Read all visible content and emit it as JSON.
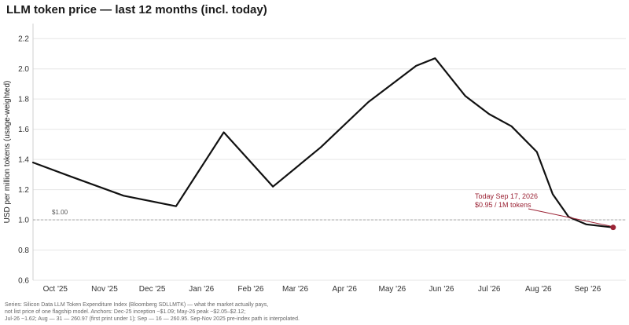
{
  "chart_data": {
    "type": "line",
    "title": "LLM token price — last 12 months  (incl. today)",
    "ylabel": "USD per million tokens  (usage-weighted)",
    "xlabel": "",
    "ylim": [
      0.6,
      2.3
    ],
    "yticks": [
      0.6,
      0.8,
      1.0,
      1.2,
      1.4,
      1.6,
      1.8,
      2.0,
      2.2
    ],
    "xlim": [
      "2025-09-17",
      "2026-09-25"
    ],
    "xticks": [
      {
        "date": "2025-10-01",
        "label": "Oct '25"
      },
      {
        "date": "2025-11-01",
        "label": "Nov '25"
      },
      {
        "date": "2025-12-01",
        "label": "Dec '25"
      },
      {
        "date": "2026-01-01",
        "label": "Jan '26"
      },
      {
        "date": "2026-02-01",
        "label": "Feb '26"
      },
      {
        "date": "2026-03-01",
        "label": "Mar '26"
      },
      {
        "date": "2026-04-01",
        "label": "Apr '26"
      },
      {
        "date": "2026-05-01",
        "label": "May '26"
      },
      {
        "date": "2026-06-01",
        "label": "Jun '26"
      },
      {
        "date": "2026-07-01",
        "label": "Jul '26"
      },
      {
        "date": "2026-08-01",
        "label": "Aug '26"
      },
      {
        "date": "2026-09-01",
        "label": "Sep '26"
      }
    ],
    "grid": "horizontal",
    "reference_line": {
      "y": 1.0,
      "label": "$1.00"
    },
    "series": [
      {
        "color": "#111111",
        "points": [
          {
            "x": "2025-09-17",
            "y": 1.38
          },
          {
            "x": "2025-10-10",
            "y": 1.29
          },
          {
            "x": "2025-11-13",
            "y": 1.16
          },
          {
            "x": "2025-12-16",
            "y": 1.09
          },
          {
            "x": "2026-01-15",
            "y": 1.58
          },
          {
            "x": "2026-02-15",
            "y": 1.22
          },
          {
            "x": "2026-03-17",
            "y": 1.48
          },
          {
            "x": "2026-04-16",
            "y": 1.78
          },
          {
            "x": "2026-05-16",
            "y": 2.02
          },
          {
            "x": "2026-05-28",
            "y": 2.07
          },
          {
            "x": "2026-06-16",
            "y": 1.82
          },
          {
            "x": "2026-07-01",
            "y": 1.7
          },
          {
            "x": "2026-07-15",
            "y": 1.62
          },
          {
            "x": "2026-07-31",
            "y": 1.45
          },
          {
            "x": "2026-08-10",
            "y": 1.17
          },
          {
            "x": "2026-08-20",
            "y": 1.02
          },
          {
            "x": "2026-08-31",
            "y": 0.97
          },
          {
            "x": "2026-09-17",
            "y": 0.95
          }
        ]
      }
    ],
    "annotation": {
      "x": "2026-09-17",
      "y": 0.95,
      "lines": [
        "Today  Sep 17, 2026",
        "$0.95 / 1M tokens"
      ],
      "color": "#9b2335"
    }
  },
  "footnote": {
    "lines": [
      "Series: Silicon Data LLM Token Expenditure Index (Bloomberg SDLLMTK) — what the market actually pays,",
      "not list price of one flagship model. Anchors: Dec-25 inception ~$1.09; May-26 peak ~$2.05–$2.12;",
      "Jul-26 ~1.62; Aug — 31 — 260.97 (first print under 1); Sep — 16 — 260.95. Sep-Nov 2025 pre-index path is interpolated."
    ]
  },
  "colors": {
    "line": "#111111",
    "accent": "#9b2335",
    "grid": "#e6e6e6",
    "reference": "#9a9a9a"
  }
}
